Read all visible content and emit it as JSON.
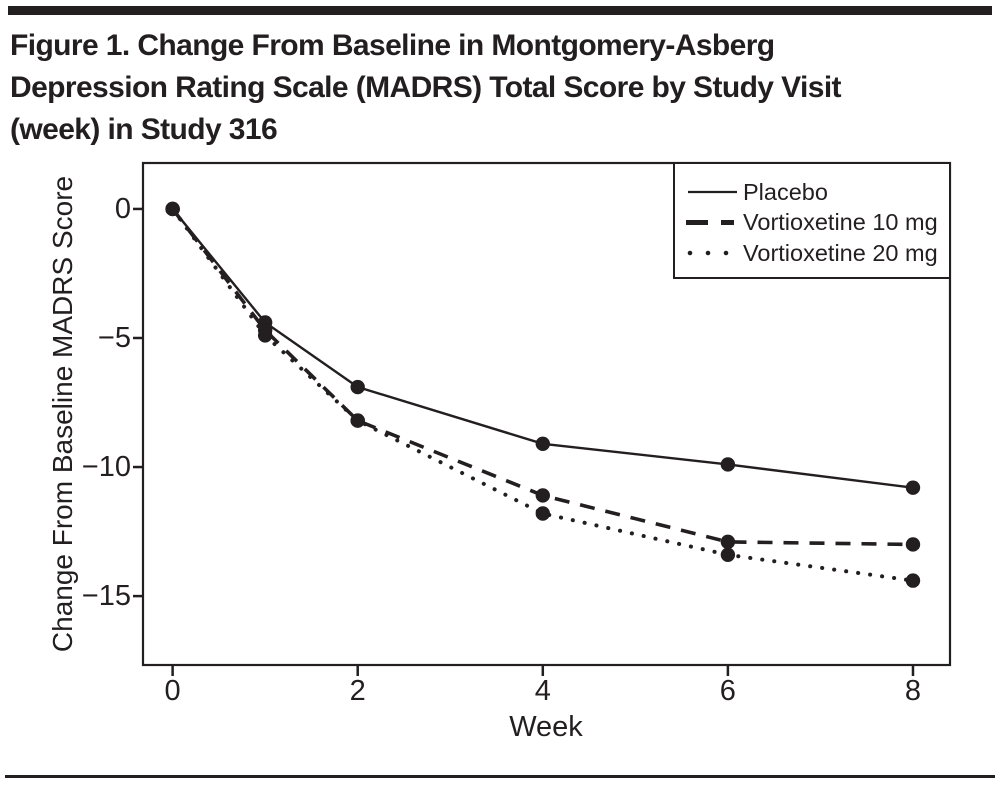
{
  "figure": {
    "title_lines": [
      "Figure 1. Change From Baseline in Montgomery-Asberg",
      "Depression Rating Scale (MADRS) Total Score by Study Visit",
      "(week) in Study 316"
    ]
  },
  "legend": {
    "items": [
      {
        "label": "Placebo",
        "swatch": "solid-line"
      },
      {
        "label": "Vortioxetine 10 mg",
        "swatch": "dashed-line"
      },
      {
        "label": "Vortioxetine 20 mg",
        "swatch": "dotted-line"
      }
    ]
  },
  "chart_data": {
    "type": "line",
    "title": "Figure 1. Change From Baseline in Montgomery-Asberg Depression Rating Scale (MADRS) Total Score by Study Visit (week) in Study 316",
    "xlabel": "Week",
    "ylabel": "Change From Baseline MADRS Score",
    "x": [
      0,
      1,
      2,
      4,
      6,
      8
    ],
    "series": [
      {
        "name": "Placebo",
        "line_style": "solid",
        "values": [
          0,
          -4.4,
          -6.9,
          -9.1,
          -9.9,
          -10.8
        ]
      },
      {
        "name": "Vortioxetine 10 mg",
        "line_style": "dashed",
        "values": [
          0,
          -4.7,
          -8.2,
          -11.1,
          -12.9,
          -13.0
        ]
      },
      {
        "name": "Vortioxetine 20 mg",
        "line_style": "dotted",
        "values": [
          0,
          -4.9,
          -8.2,
          -11.8,
          -13.4,
          -14.4
        ]
      }
    ],
    "marker": "filled-circle",
    "line_color": "#231f20",
    "xticks": {
      "values": [
        0,
        2,
        4,
        6,
        8
      ],
      "labels": [
        "0",
        "2",
        "4",
        "6",
        "8"
      ]
    },
    "yticks": {
      "values": [
        0,
        -5,
        -10,
        -15
      ],
      "labels": [
        "0",
        "−5",
        "−10",
        "−15"
      ]
    },
    "xlim": [
      -0.32,
      8.4
    ],
    "ylim": [
      -17.67,
      1.78
    ],
    "grid": false,
    "legend_position": "top-right"
  }
}
